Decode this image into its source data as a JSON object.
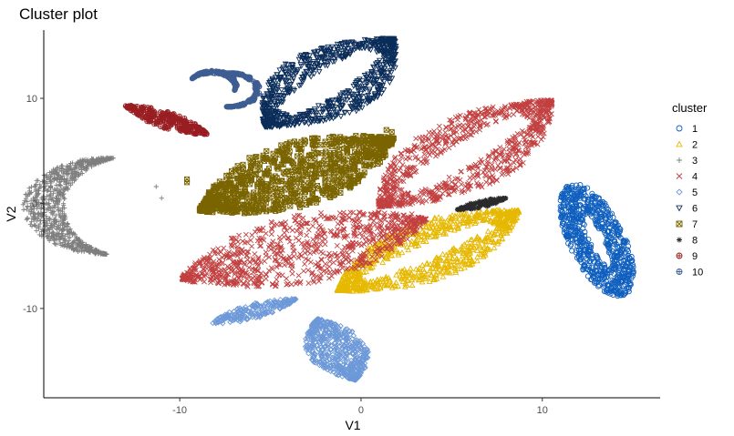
{
  "chart_data": {
    "type": "scatter",
    "title": "Cluster plot",
    "xlabel": "V1",
    "ylabel": "V2",
    "xlim": [
      -17.5,
      16.5
    ],
    "ylim": [
      -18.5,
      16.5
    ],
    "x_ticks": [
      -10,
      0,
      10
    ],
    "y_ticks": [
      -10,
      0,
      10
    ],
    "grid": false,
    "legend": {
      "title": "cluster",
      "placement": "right",
      "entries": [
        "1",
        "2",
        "3",
        "4",
        "5",
        "6",
        "7",
        "8",
        "9",
        "10"
      ]
    },
    "series": [
      {
        "name": "1",
        "color": "#0f5fbf",
        "marker": "circle",
        "blobs": [
          {
            "type": "ellipse",
            "cx": 13.0,
            "cy": -3.5,
            "rx": 1.6,
            "ry": 5.5,
            "angle": 14,
            "hole": 0.45
          }
        ]
      },
      {
        "name": "2",
        "color": "#e6b800",
        "marker": "triangle",
        "blobs": [
          {
            "type": "leaf",
            "x1": -1.3,
            "y1": -8.3,
            "x2": 8.7,
            "y2": -0.7,
            "w": 5.2,
            "hole": 0.3
          }
        ],
        "outliers": [
          [
            -0.4,
            -6.0
          ]
        ]
      },
      {
        "name": "3",
        "color": "#7f7f7f",
        "marker": "plus",
        "blobs": [
          {
            "type": "crescent",
            "cx": -12.8,
            "cy": -0.3,
            "r": 4.7,
            "a1": 100,
            "a2": 255,
            "w": 2.3
          }
        ],
        "outliers": [
          [
            -11.3,
            1.6
          ],
          [
            -11.0,
            0.5
          ]
        ]
      },
      {
        "name": "4",
        "color": "#c24040",
        "marker": "x",
        "blobs": [
          {
            "type": "leaf",
            "x1": -9.9,
            "y1": -7.2,
            "x2": 3.6,
            "y2": -1.5,
            "w": 6.3,
            "hole": 0
          },
          {
            "type": "leaf",
            "x1": 1.0,
            "y1": -0.3,
            "x2": 10.5,
            "y2": 9.8,
            "w": 6.2,
            "hole": 0.35
          }
        ],
        "outliers": [
          [
            2.8,
            -1.0
          ],
          [
            1.4,
            0.3
          ]
        ]
      },
      {
        "name": "5",
        "color": "#6d99d8",
        "marker": "diamond",
        "blobs": [
          {
            "type": "leaf",
            "x1": -8.2,
            "y1": -11.4,
            "x2": -3.6,
            "y2": -9.1,
            "w": 1.4,
            "hole": 0
          },
          {
            "type": "leaf",
            "x1": -2.4,
            "y1": -11.0,
            "x2": -0.3,
            "y2": -16.8,
            "w": 3.4,
            "hole": 0
          }
        ]
      },
      {
        "name": "6",
        "color": "#0b2d5a",
        "marker": "triangle-down",
        "blobs": [
          {
            "type": "leaf",
            "x1": -5.3,
            "y1": 7.3,
            "x2": 1.8,
            "y2": 15.7,
            "w": 6.0,
            "hole": 0.4
          }
        ]
      },
      {
        "name": "7",
        "color": "#7a6400",
        "marker": "square-x",
        "blobs": [
          {
            "type": "leaf",
            "x1": -8.9,
            "y1": -0.7,
            "x2": 1.8,
            "y2": 6.2,
            "w": 5.8,
            "hole": 0
          }
        ],
        "outliers": [
          [
            -9.6,
            2.3
          ],
          [
            -9.6,
            2.0
          ],
          [
            1.4,
            7.0
          ],
          [
            1.7,
            6.8
          ]
        ]
      },
      {
        "name": "8",
        "color": "#2b2b2b",
        "marker": "asterisk",
        "blobs": [
          {
            "type": "leaf",
            "x1": 5.3,
            "y1": -0.6,
            "x2": 8.0,
            "y2": 0.5,
            "w": 0.7,
            "hole": 0
          }
        ]
      },
      {
        "name": "9",
        "color": "#991e22",
        "marker": "circle-plus",
        "blobs": [
          {
            "type": "leaf",
            "x1": -13.0,
            "y1": 9.3,
            "x2": -8.5,
            "y2": 6.6,
            "w": 1.5,
            "hole": 0
          }
        ]
      },
      {
        "name": "10",
        "color": "#3d5d93",
        "marker": "circle-plus",
        "blobs": [
          {
            "type": "crescent",
            "cx": -8.2,
            "cy": 11.2,
            "r": 1.3,
            "a1": -20,
            "a2": 150,
            "w": 0.3
          },
          {
            "type": "crescent",
            "cx": -7.3,
            "cy": 10.8,
            "r": 1.6,
            "a1": -95,
            "a2": 95,
            "w": 0.3
          }
        ]
      }
    ]
  }
}
